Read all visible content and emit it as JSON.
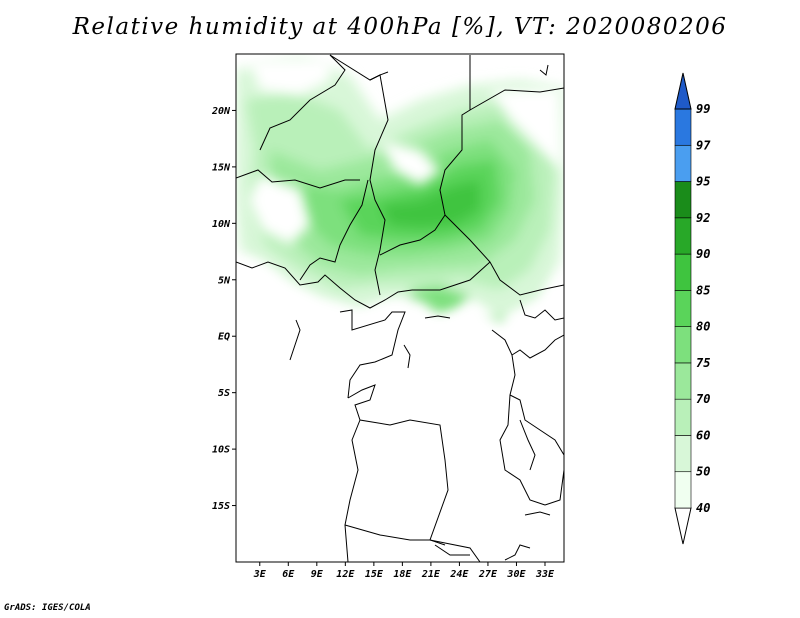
{
  "title": "Relative humidity at 400hPa [%], VT: 2020080206",
  "credit": "GrADS: IGES/COLA",
  "map": {
    "lat_ticks": [
      "20N",
      "15N",
      "10N",
      "5N",
      "EQ",
      "5S",
      "10S",
      "15S"
    ],
    "lat_values": [
      20,
      15,
      10,
      5,
      0,
      -5,
      -10,
      -15
    ],
    "lon_ticks": [
      "3E",
      "6E",
      "9E",
      "12E",
      "15E",
      "18E",
      "21E",
      "24E",
      "27E",
      "30E",
      "33E"
    ],
    "lon_values": [
      3,
      6,
      9,
      12,
      15,
      18,
      21,
      24,
      27,
      30,
      33
    ],
    "lon_range": [
      0.5,
      35
    ],
    "lat_range": [
      -20,
      25
    ]
  },
  "colorbar": {
    "levels": [
      "40",
      "50",
      "60",
      "70",
      "75",
      "80",
      "85",
      "90",
      "92",
      "95",
      "97",
      "99"
    ],
    "colors": [
      "#f0fff0",
      "#d8f7d8",
      "#b9f0b9",
      "#9be89b",
      "#7de07d",
      "#5ad45a",
      "#3fc43f",
      "#28a828",
      "#1a8c1a",
      "#4a9ef0",
      "#2a78e0",
      "#1f5ac8"
    ]
  }
}
